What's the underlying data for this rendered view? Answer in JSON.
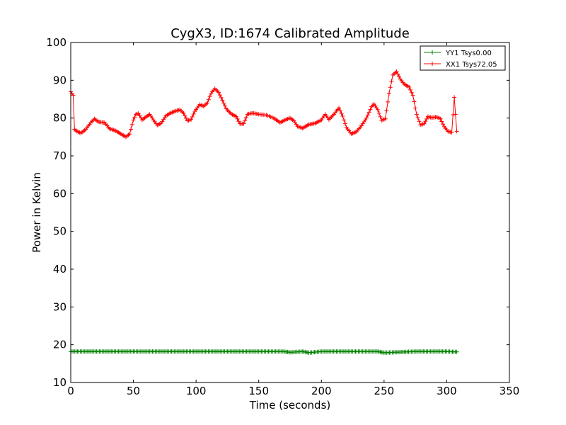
{
  "chart_data": {
    "type": "line",
    "title": "CygX3, ID:1674 Calibrated Amplitude",
    "xlabel": "Time (seconds)",
    "ylabel": "Power in Kelvin",
    "xlim": [
      0,
      350
    ],
    "ylim": [
      10,
      100
    ],
    "x_ticks": [
      "0",
      "50",
      "100",
      "150",
      "200",
      "250",
      "300",
      "350"
    ],
    "y_ticks": [
      "10",
      "20",
      "30",
      "40",
      "50",
      "60",
      "70",
      "80",
      "90",
      "100"
    ],
    "grid": false,
    "legend_position": "top-right",
    "marker": "+",
    "series": [
      {
        "name": "YY1 Tsys0.00",
        "color": "#008000",
        "x": [
          0,
          25,
          50,
          75,
          100,
          125,
          150,
          170,
          175,
          185,
          190,
          200,
          225,
          245,
          250,
          275,
          300,
          308
        ],
        "y": [
          18.2,
          18.2,
          18.2,
          18.2,
          18.2,
          18.2,
          18.2,
          18.2,
          18.0,
          18.2,
          17.9,
          18.2,
          18.2,
          18.2,
          17.9,
          18.2,
          18.2,
          18.1
        ]
      },
      {
        "name": "XX1 Tsys72.05",
        "color": "#ff0000",
        "x": [
          0,
          1,
          2,
          3,
          5,
          8,
          12,
          16,
          19,
          22,
          27,
          31,
          36,
          40,
          44,
          47,
          50,
          52,
          54,
          57,
          60,
          63,
          66,
          69,
          72,
          76,
          80,
          84,
          87,
          90,
          93,
          96,
          99,
          103,
          106,
          109,
          112,
          115,
          118,
          121,
          124,
          128,
          132,
          135,
          138,
          141,
          145,
          150,
          156,
          162,
          167,
          171,
          175,
          178,
          181,
          185,
          190,
          195,
          200,
          203,
          206,
          210,
          214,
          217,
          220,
          224,
          228,
          232,
          236,
          240,
          242,
          245,
          248,
          251,
          254,
          257,
          260,
          263,
          266,
          270,
          273,
          276,
          279,
          282,
          285,
          288,
          292,
          295,
          298,
          301,
          304,
          306,
          307,
          308
        ],
        "y": [
          87,
          86.5,
          86,
          77,
          76.5,
          76,
          77,
          78.8,
          79.8,
          79,
          78.8,
          77.2,
          76.6,
          75.8,
          75,
          75.8,
          79.5,
          81,
          81.2,
          79.5,
          80.3,
          81,
          79.5,
          78.1,
          78.6,
          80.6,
          81.4,
          81.9,
          82.2,
          81.3,
          79.3,
          79.6,
          81.8,
          83.6,
          83.1,
          84,
          86.6,
          87.8,
          86.8,
          84.7,
          82.5,
          81.1,
          80.4,
          78.5,
          78.5,
          81,
          81.3,
          81,
          80.8,
          80,
          78.8,
          79.5,
          80,
          79.3,
          77.8,
          77.3,
          78.3,
          78.6,
          79.5,
          81,
          79.6,
          81,
          82.7,
          80.5,
          77.5,
          75.8,
          76.4,
          78,
          80,
          83,
          83.7,
          82.2,
          79.4,
          79.8,
          86.5,
          91.4,
          92.3,
          90.3,
          89,
          88.2,
          86,
          81,
          78.2,
          78.5,
          80.4,
          80.1,
          80.3,
          79.8,
          77.7,
          76.5,
          76.2,
          85.5,
          81,
          76.5
        ]
      }
    ]
  }
}
